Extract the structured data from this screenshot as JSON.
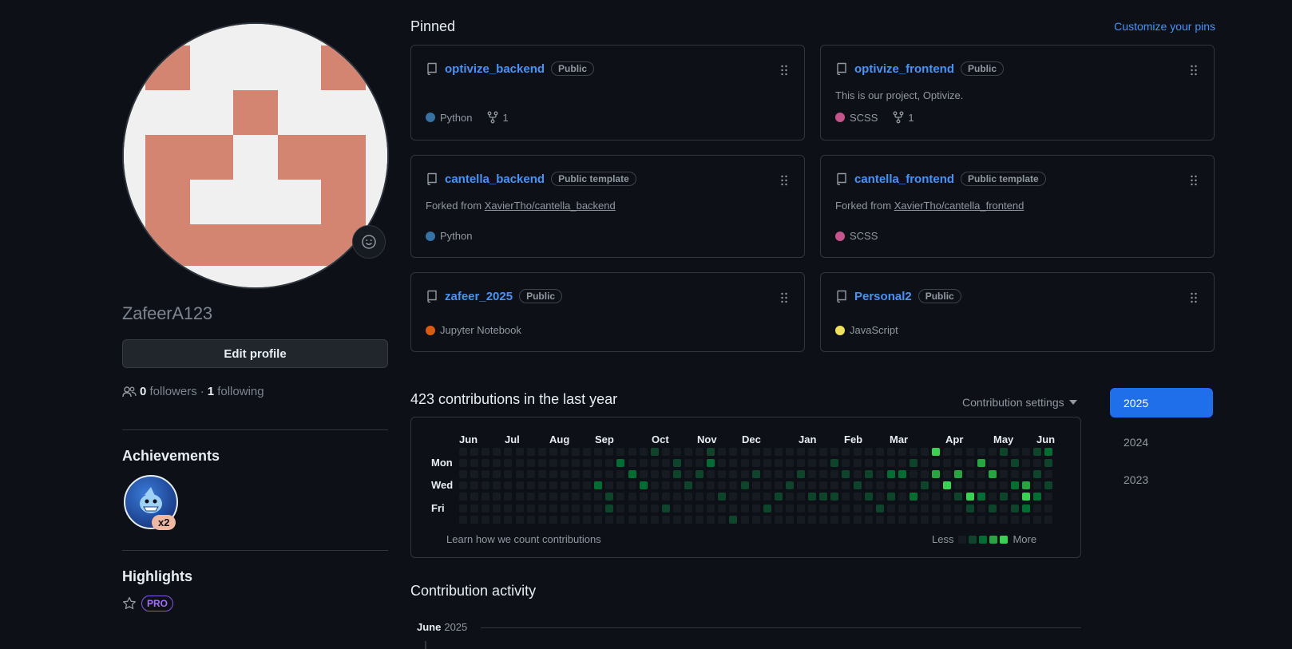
{
  "profile": {
    "username": "ZafeerA123",
    "edit_label": "Edit profile",
    "followers_count": "0",
    "followers_label": "followers",
    "separator": "·",
    "following_count": "1",
    "following_label": "following"
  },
  "achievements": {
    "title": "Achievements",
    "badge_count": "x2"
  },
  "highlights": {
    "title": "Highlights",
    "pro_label": "PRO"
  },
  "pinned": {
    "title": "Pinned",
    "customize_label": "Customize your pins",
    "repos": [
      {
        "name": "optivize_backend",
        "visibility": "Public",
        "description": "",
        "language": "Python",
        "lang_color": "#3572A5",
        "forks": "1"
      },
      {
        "name": "optivize_frontend",
        "visibility": "Public",
        "description": "This is our project, Optivize.",
        "language": "SCSS",
        "lang_color": "#c6538c",
        "forks": "1"
      },
      {
        "name": "cantella_backend",
        "visibility": "Public template",
        "forked_prefix": "Forked from",
        "forked_from": "XavierTho/cantella_backend",
        "language": "Python",
        "lang_color": "#3572A5"
      },
      {
        "name": "cantella_frontend",
        "visibility": "Public template",
        "forked_prefix": "Forked from",
        "forked_from": "XavierTho/cantella_frontend",
        "language": "SCSS",
        "lang_color": "#c6538c"
      },
      {
        "name": "zafeer_2025",
        "visibility": "Public",
        "language": "Jupyter Notebook",
        "lang_color": "#DA5B0B"
      },
      {
        "name": "Personal2",
        "visibility": "Public",
        "language": "JavaScript",
        "lang_color": "#f1e05a"
      }
    ]
  },
  "contributions": {
    "title": "423 contributions in the last year",
    "settings_label": "Contribution settings",
    "months": [
      "Jun",
      "Jul",
      "Aug",
      "Sep",
      "Oct",
      "Nov",
      "Dec",
      "Jan",
      "Feb",
      "Mar",
      "Apr",
      "May",
      "Jun"
    ],
    "days": [
      "Mon",
      "Wed",
      "Fri"
    ],
    "learn_label": "Learn how we count contributions",
    "legend_less": "Less",
    "legend_more": "More",
    "level_colors": [
      "#161b22",
      "#0e4429",
      "#006d32",
      "#26a641",
      "#39d353"
    ]
  },
  "years": [
    "2025",
    "2024",
    "2023"
  ],
  "activity": {
    "title": "Contribution activity",
    "month": "June",
    "year": "2025"
  }
}
